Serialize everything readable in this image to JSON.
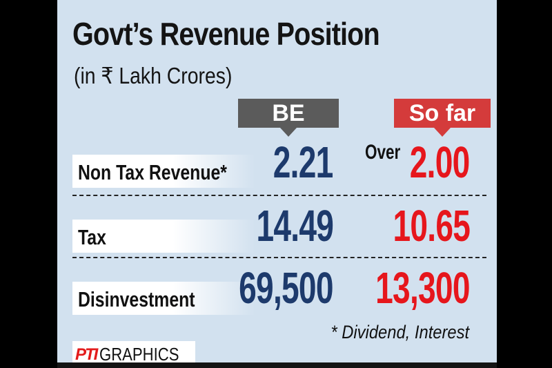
{
  "title": "Govt’s Revenue Position",
  "subtitle": "(in ₹ Lakh Crores)",
  "headers": {
    "be": "BE",
    "so_far": "So far"
  },
  "rows": [
    {
      "label": "Non Tax Revenue*",
      "be": "2.21",
      "so_far_prefix": "Over",
      "so_far": "2.00"
    },
    {
      "label": "Tax",
      "be": "14.49",
      "so_far": "10.65"
    },
    {
      "label": "Disinvestment",
      "be": "69,500",
      "so_far": "13,300"
    }
  ],
  "footnote": "* Dividend, Interest",
  "credit": {
    "mark": "PTI",
    "text": "GRAPHICS"
  },
  "colors": {
    "background": "#d2e1ef",
    "be_value": "#1d3a6c",
    "so_far_value": "#e6161c",
    "be_header": "#5b5b5b",
    "so_far_header": "#d43b3b"
  }
}
